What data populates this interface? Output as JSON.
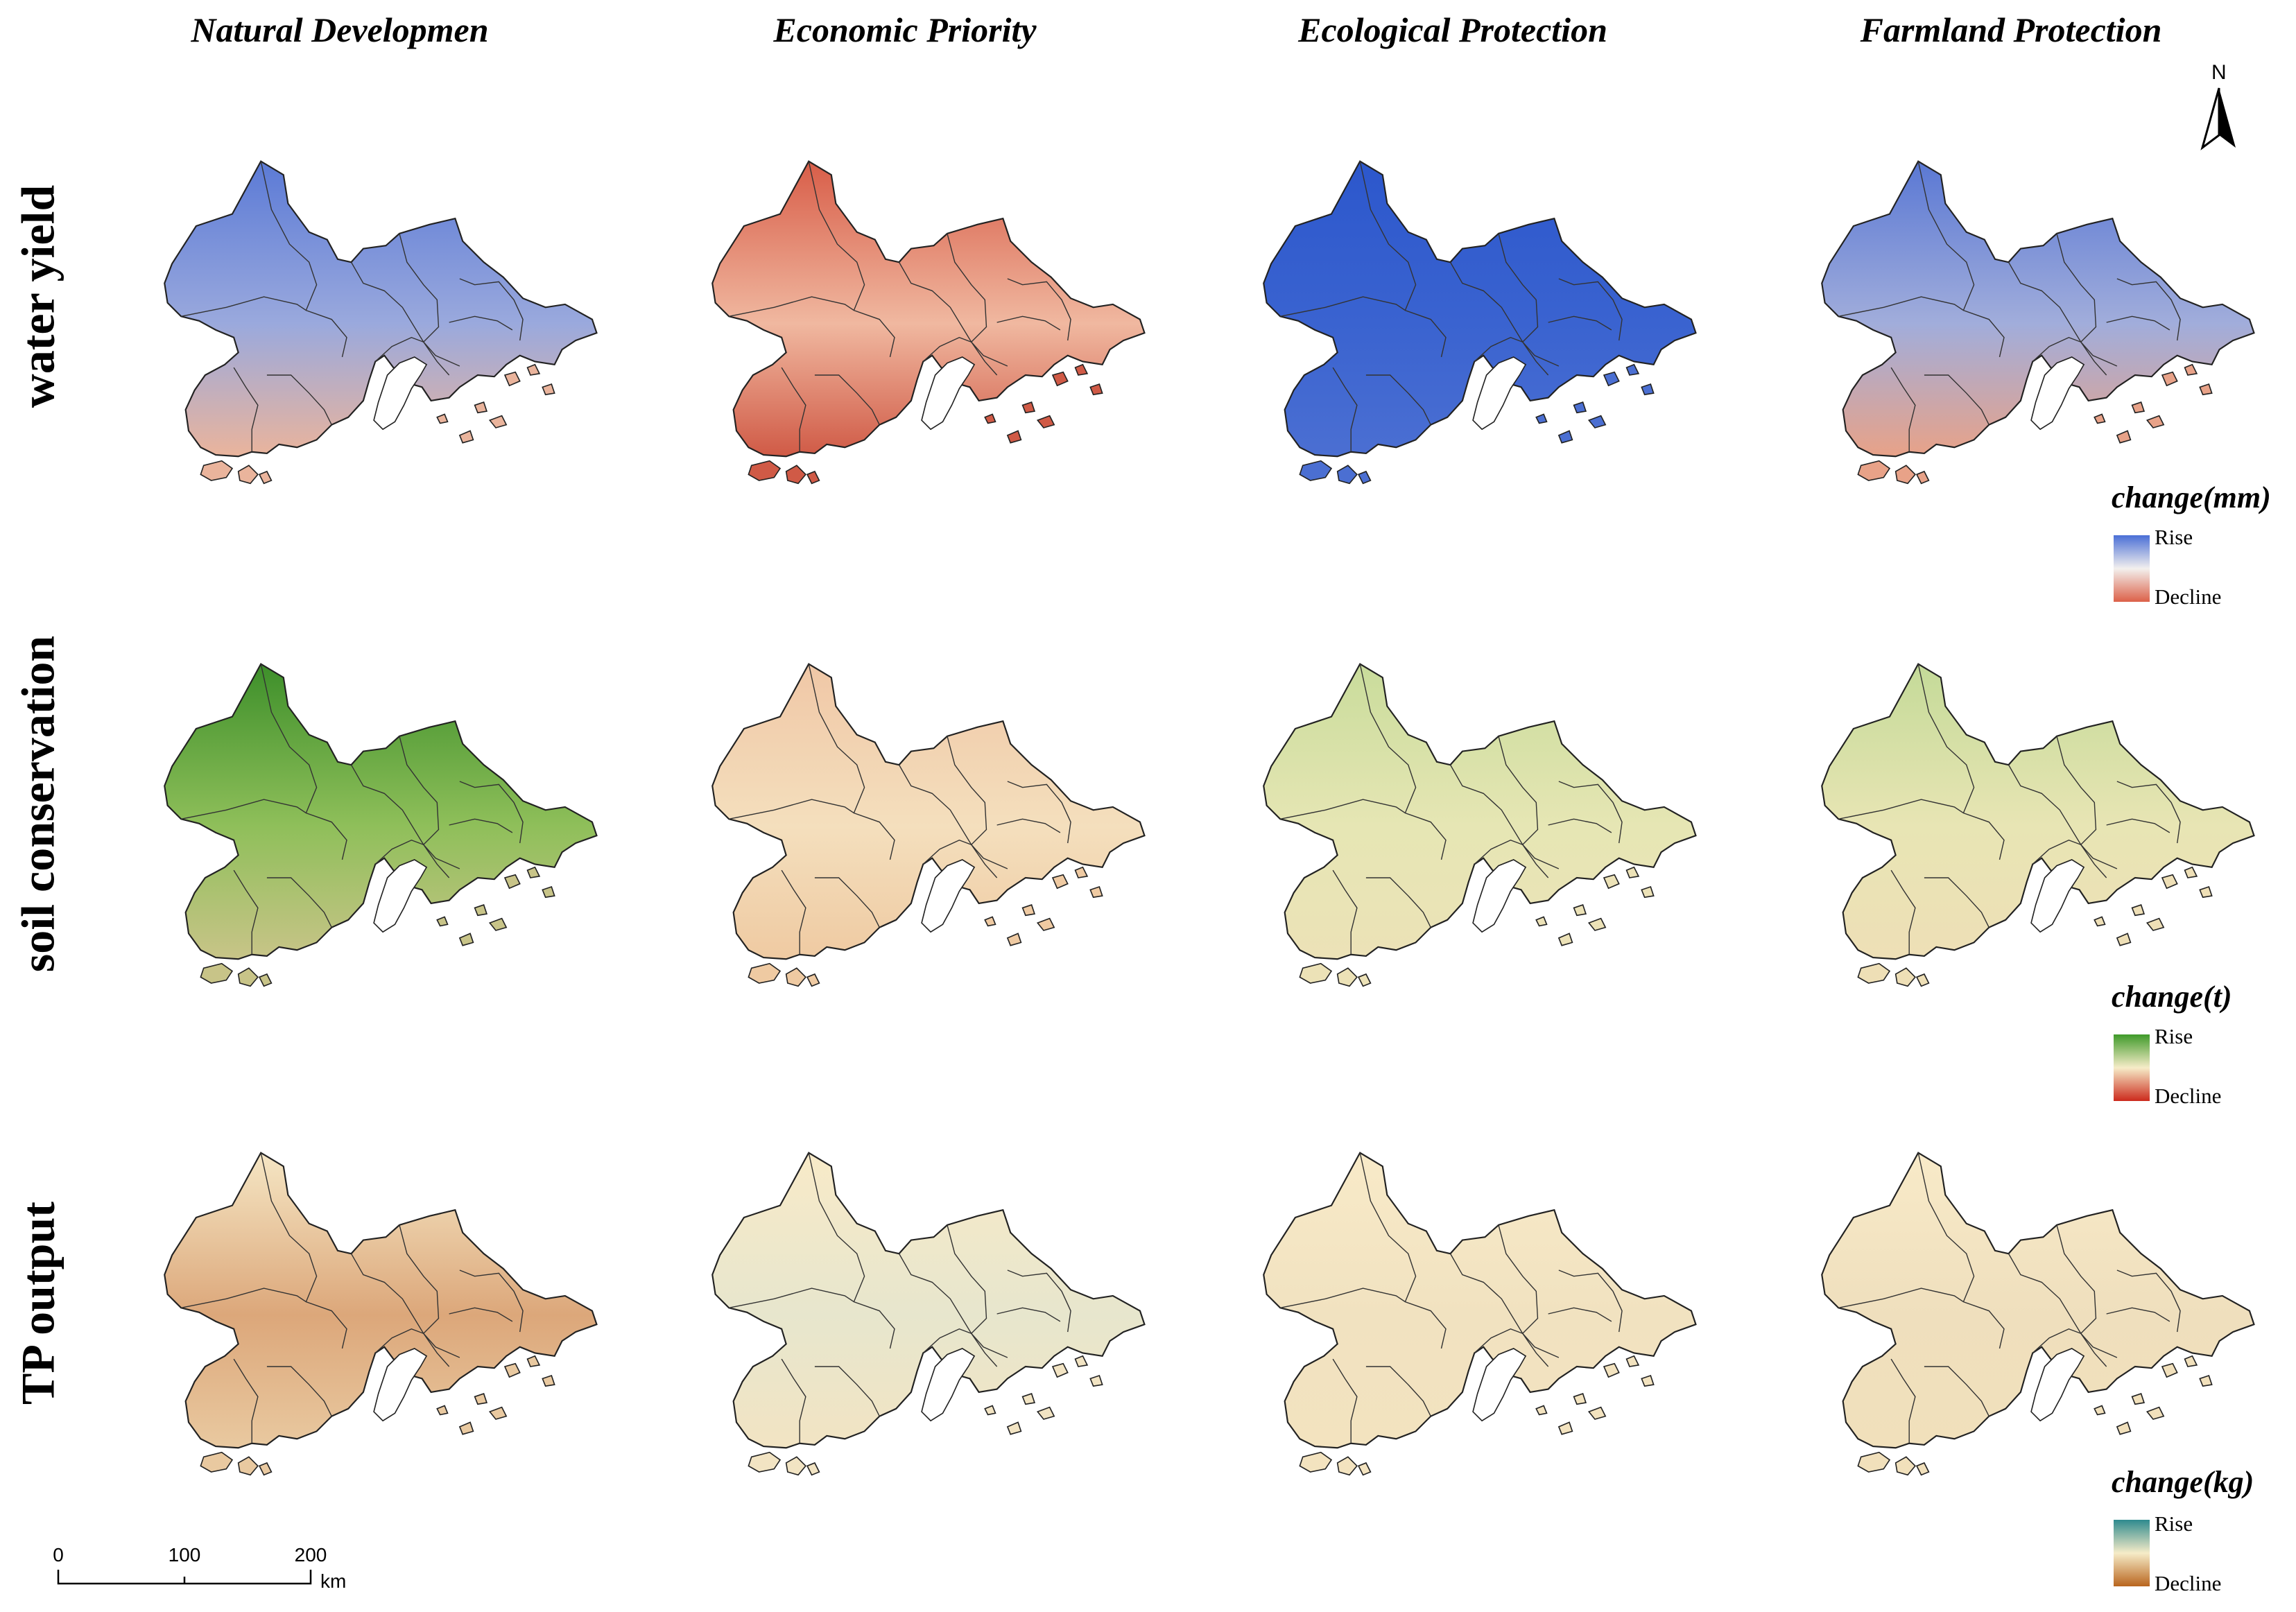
{
  "columns": [
    {
      "title": "Natural Developmen"
    },
    {
      "title": "Economic Priority"
    },
    {
      "title": "Ecological Protection"
    },
    {
      "title": "Farmland Protection"
    }
  ],
  "rows": [
    {
      "title": "water yield",
      "legend": {
        "title": "change(mm)",
        "rise": "Rise",
        "decline": "Decline",
        "rise_color": "#4a6fd6",
        "mid_color": "#f3f0ee",
        "decline_color": "#dc6048"
      },
      "scenario_colors": [
        {
          "top": "#5b7ad6",
          "mid": "#9aa9dd",
          "bottom": "#eab49c"
        },
        {
          "top": "#d85d48",
          "mid": "#f0b8a0",
          "bottom": "#d05a46"
        },
        {
          "top": "#2c57cc",
          "mid": "#3a63d0",
          "bottom": "#4b6fd2"
        },
        {
          "top": "#5a78d4",
          "mid": "#a1addb",
          "bottom": "#e8a288"
        }
      ]
    },
    {
      "title": "soil conservation",
      "legend": {
        "title": "change(t)",
        "rise": "Rise",
        "decline": "Decline",
        "rise_color": "#3f9a2a",
        "mid_color": "#f6ecc8",
        "decline_color": "#cc2a1c"
      },
      "scenario_colors": [
        {
          "top": "#3d8f2a",
          "mid": "#8fbf5a",
          "bottom": "#c8c488"
        },
        {
          "top": "#f0c7a6",
          "mid": "#f4dfbd",
          "bottom": "#efcaa2"
        },
        {
          "top": "#c9dc9b",
          "mid": "#e6e6b4",
          "bottom": "#ece2b7"
        },
        {
          "top": "#c4da98",
          "mid": "#e8e5b4",
          "bottom": "#eedfb6"
        }
      ]
    },
    {
      "title": "TP output",
      "legend": {
        "title": "change(kg)",
        "rise": "Rise",
        "decline": "Decline",
        "rise_color": "#2e8a8e",
        "mid_color": "#f6ecc8",
        "decline_color": "#b9651e"
      },
      "scenario_colors": [
        {
          "top": "#f5e6c4",
          "mid": "#dca77a",
          "bottom": "#e9c9a0"
        },
        {
          "top": "#f8eac8",
          "mid": "#e7e6cd",
          "bottom": "#f2e4c3"
        },
        {
          "top": "#f8eac8",
          "mid": "#f1e2c0",
          "bottom": "#f3e3bf"
        },
        {
          "top": "#f8eac8",
          "mid": "#efdfbd",
          "bottom": "#f1e0bb"
        }
      ]
    }
  ],
  "north_arrow": {
    "label": "N"
  },
  "scale_bar": {
    "ticks": [
      "0",
      "100",
      "200"
    ],
    "unit": "km"
  }
}
